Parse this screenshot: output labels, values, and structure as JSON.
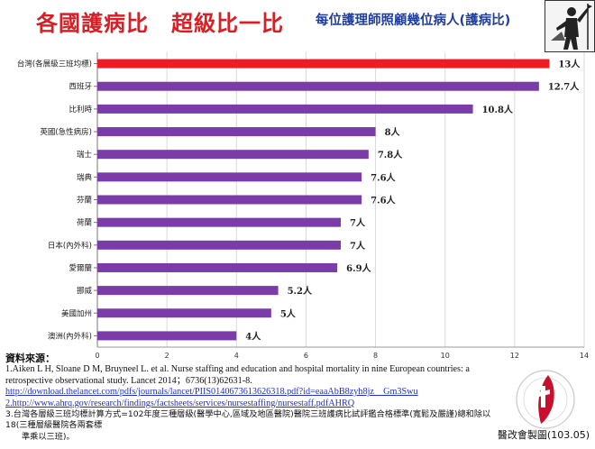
{
  "header": {
    "title": "各國護病比　超級比一比",
    "subtitle": "每位護理師照顧幾位病人(護病比)"
  },
  "colors": {
    "title": "#d81f26",
    "subtitle": "#1f3ea3",
    "highlight_bar": "#ee1c25",
    "bar": "#7a3ca8",
    "grid": "#d9d9d9"
  },
  "chart_data": {
    "type": "bar",
    "orientation": "horizontal",
    "categories": [
      "台灣(各層級三班均標)",
      "西班牙",
      "比利時",
      "英國(急性病房)",
      "瑞士",
      "瑞典",
      "芬蘭",
      "荷蘭",
      "日本(內外科)",
      "愛爾蘭",
      "挪威",
      "美國加州",
      "澳洲(內外科)"
    ],
    "values": [
      13,
      12.7,
      10.8,
      8,
      7.8,
      7.6,
      7.6,
      7,
      7,
      6.9,
      5.2,
      5,
      4
    ],
    "data_labels": [
      "13人",
      "12.7人",
      "10.8人",
      "8人",
      "7.8人",
      "7.6人",
      "7.6人",
      "7人",
      "7人",
      "6.9人",
      "5.2人",
      "5人",
      "4人"
    ],
    "highlight_index": 0,
    "xlim": [
      0,
      14
    ],
    "xticks": [
      "0",
      "2",
      "4",
      "6",
      "8",
      "10",
      "12",
      "14"
    ],
    "grid": true
  },
  "references": {
    "heading": "資料來源：",
    "ref1_text": "1.Aiken L H, Sloane D M, Bruyneel L. et al. Nurse staffing and education and hospital mortality in nine European countries: a retrospective observational study. Lancet 2014；6736(13)62631-8.",
    "ref1_link": "http://download.thelancet.com/pdfs/journals/lancet/PIIS0140673613626318.pdf?id=eaaAbB8zyh8jz__Gm3Swu",
    "ref2_link": "2.http://www.ahrq.gov/research/findings/factsheets/services/nursestaffing/nursestaff.pdfAHRQ",
    "ref3_line1": "3.台灣各層級三班均標計算方式=102年度三種層級(醫學中心,區域及地區醫院)醫院三班護病比試評鑑合格標準(寬鬆及嚴謹)總和除以18(三種層級醫院各兩套標",
    "ref3_line2": "準乘以三班)。"
  },
  "credit": "醫改會製圖(103.05)",
  "icons": {
    "logo": "person-with-banner-icon",
    "emblem": "taiwan-healthcare-reform-foundation-emblem-icon"
  }
}
